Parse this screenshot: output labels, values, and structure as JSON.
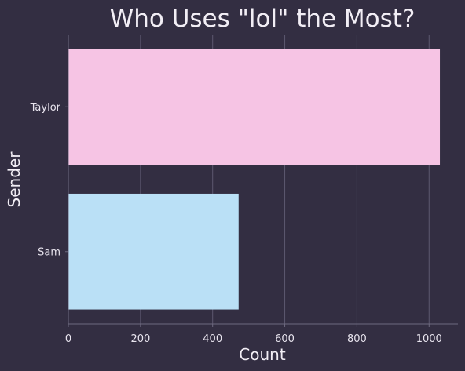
{
  "colors": {
    "background": "#332e42",
    "grid": "#5d5870",
    "spine": "#6e6a80",
    "text": "#f2eef5"
  },
  "chart_data": {
    "type": "bar",
    "orientation": "horizontal",
    "title": "Who Uses \"lol\" the Most?",
    "xlabel": "Count",
    "ylabel": "Sender",
    "categories": [
      "Taylor",
      "Sam"
    ],
    "values": [
      1030,
      472
    ],
    "bar_colors": [
      "#f6c4e4",
      "#bae0f6"
    ],
    "xlim": [
      0,
      1080
    ],
    "xticks": [
      0,
      200,
      400,
      600,
      800,
      1000
    ],
    "grid": "vertical",
    "legend": "none"
  }
}
